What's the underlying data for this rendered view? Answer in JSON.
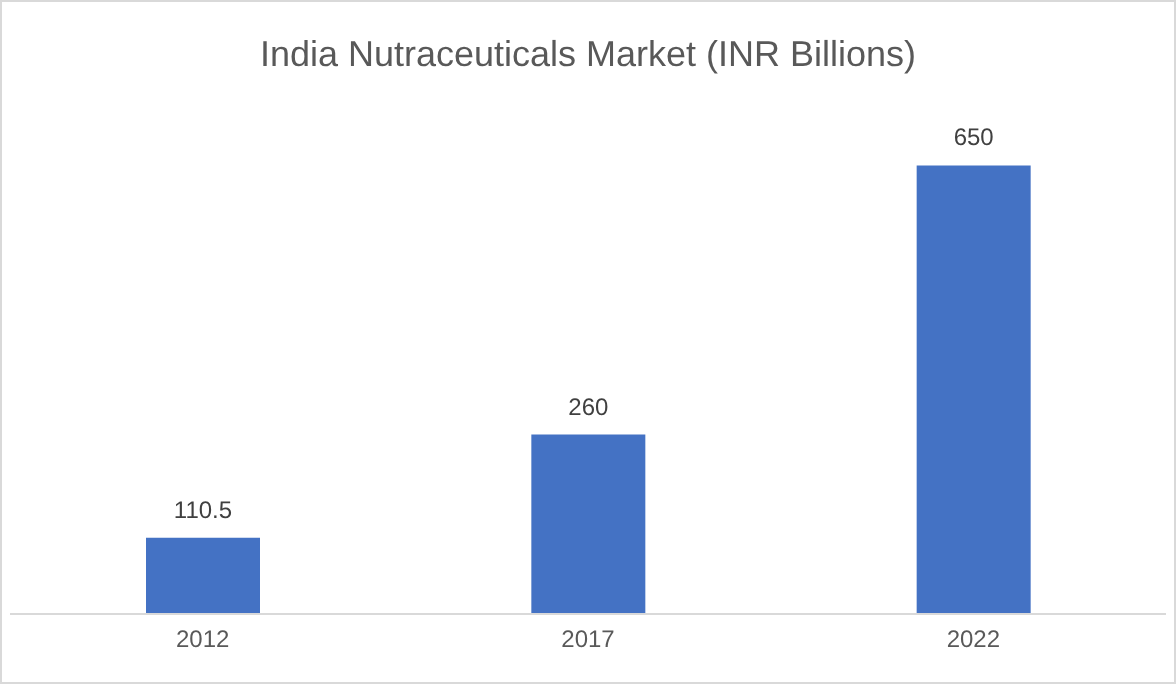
{
  "chart_data": {
    "type": "bar",
    "title": "India Nutraceuticals Market (INR Billions)",
    "categories": [
      "2012",
      "2017",
      "2022"
    ],
    "values": [
      110.5,
      260,
      650
    ],
    "color": "#4472c4",
    "data_labels": true
  }
}
